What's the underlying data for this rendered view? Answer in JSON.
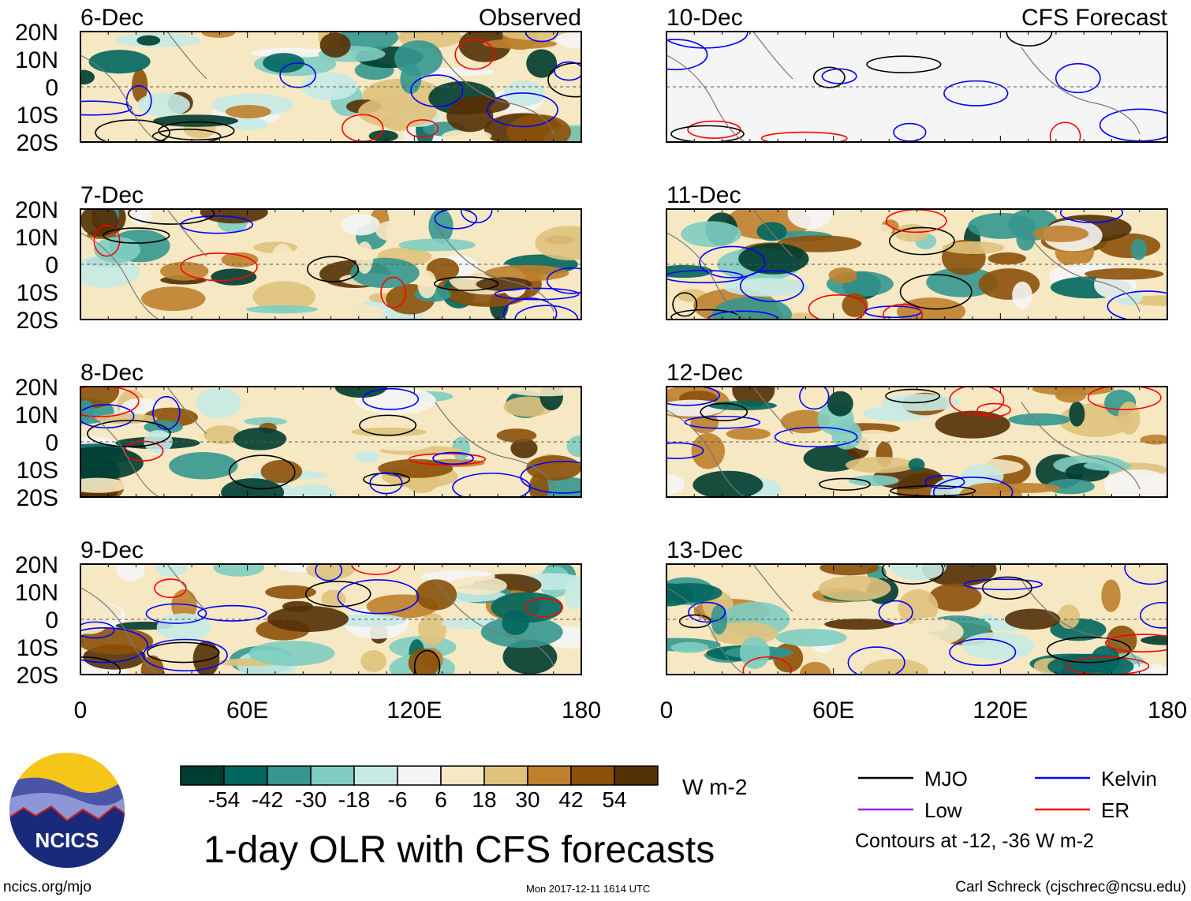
{
  "chart_data": {
    "type": "heatmap",
    "title": "1-day OLR with CFS forecasts",
    "units": "W m-2",
    "columns": [
      {
        "label": "Observed",
        "panels": [
          "6-Dec",
          "7-Dec",
          "8-Dec",
          "9-Dec"
        ]
      },
      {
        "label": "CFS Forecast",
        "panels": [
          "10-Dec",
          "11-Dec",
          "12-Dec",
          "13-Dec"
        ]
      }
    ],
    "x_ticks": [
      "0",
      "60E",
      "120E",
      "180"
    ],
    "x_range": [
      0,
      180
    ],
    "y_ticks": [
      "20N",
      "10N",
      "0",
      "10S",
      "20S"
    ],
    "y_range": [
      -20,
      20
    ],
    "colorbar": {
      "levels": [
        "-54",
        "-42",
        "-30",
        "-18",
        "-6",
        "6",
        "18",
        "30",
        "42",
        "54"
      ],
      "colors": [
        "#003c30",
        "#01665e",
        "#35978f",
        "#80cdc1",
        "#c7eae5",
        "#f5f5f5",
        "#f6e8c3",
        "#dfc27d",
        "#bf812d",
        "#8c510a",
        "#543005"
      ]
    },
    "legend": [
      {
        "label": "MJO",
        "color": "#000000"
      },
      {
        "label": "Kelvin",
        "color": "#0000ff"
      },
      {
        "label": "Low",
        "color": "#a020f0"
      },
      {
        "label": "ER",
        "color": "#ff0000"
      }
    ],
    "contour_note": "Contours at -12, -36 W m-2"
  },
  "footer": {
    "left": "ncics.org/mjo",
    "center": "Mon 2017-12-11 1614 UTC",
    "right": "Carl Schreck (cjschrec@ncsu.edu)",
    "logo_text": "NCICS"
  }
}
